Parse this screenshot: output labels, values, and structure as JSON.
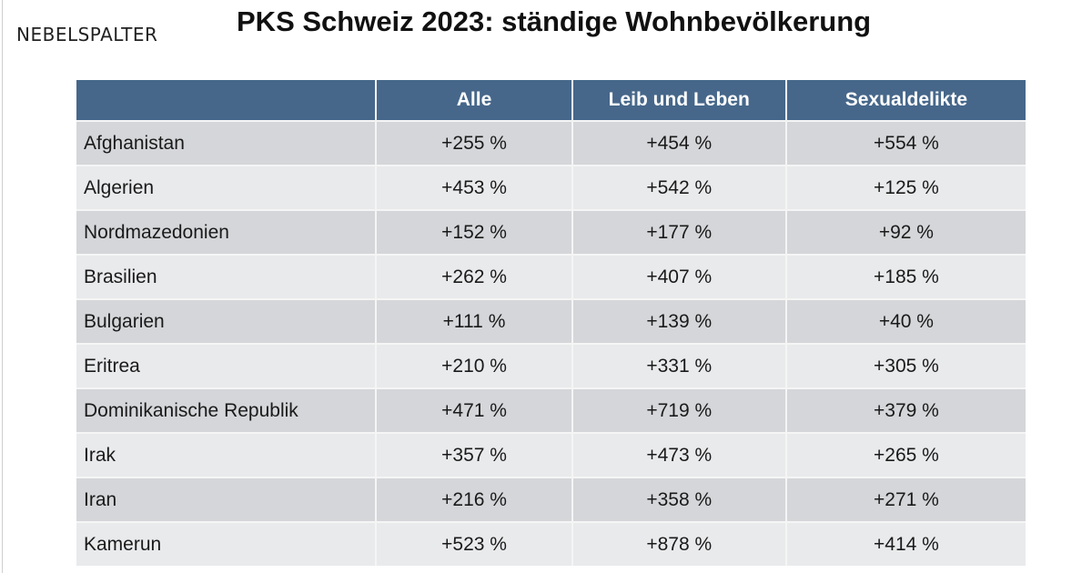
{
  "logo": "NEBELSPALTER",
  "title": "PKS Schweiz 2023: ständige Wohnbevölkerung",
  "headers": [
    "",
    "Alle",
    "Leib und Leben",
    "Sexualdelikte"
  ],
  "rows": [
    [
      "Afghanistan",
      "+255 %",
      "+454 %",
      "+554 %"
    ],
    [
      "Algerien",
      "+453 %",
      "+542 %",
      "+125 %"
    ],
    [
      "Nordmazedonien",
      "+152 %",
      "+177 %",
      "+92 %"
    ],
    [
      "Brasilien",
      "+262 %",
      "+407 %",
      "+185 %"
    ],
    [
      "Bulgarien",
      "+111 %",
      "+139 %",
      "+40 %"
    ],
    [
      "Eritrea",
      "+210 %",
      "+331 %",
      "+305 %"
    ],
    [
      "Dominikanische Republik",
      "+471 %",
      "+719 %",
      "+379 %"
    ],
    [
      "Irak",
      "+357 %",
      "+473 %",
      "+265 %"
    ],
    [
      "Iran",
      "+216 %",
      "+358 %",
      "+271 %"
    ],
    [
      "Kamerun",
      "+523 %",
      "+878 %",
      "+414 %"
    ]
  ]
}
